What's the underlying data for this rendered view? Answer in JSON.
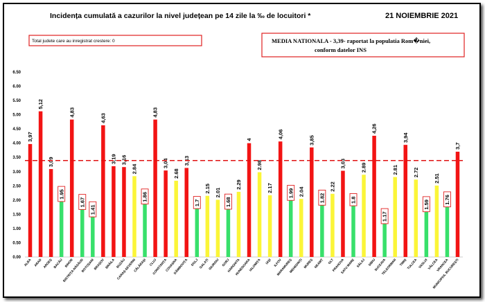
{
  "header": {
    "title": "Incidența cumulată a cazurilor la nivel județean pe 14 zile la ‰ de locuitori *",
    "date": "21 NOIEMBRIE 2021"
  },
  "info_box": {
    "text": "Total judete care au inregistrat crestere: 0"
  },
  "national_box": {
    "line1": "MEDIA NATIONALA - 3,39-  raportat la populatia Rom�niei,",
    "line2": "conform datelor INS"
  },
  "colors": {
    "red": "#f21414",
    "green": "#38e06b",
    "yellow": "#fbf538",
    "reference": "#e01010",
    "box": "#e02020"
  },
  "chart_data": {
    "type": "bar",
    "ylim": [
      0,
      6.5
    ],
    "yticks": [
      "0.00",
      "0.50",
      "1.00",
      "1.50",
      "2.00",
      "2.50",
      "3.00",
      "3.50",
      "4.00",
      "4.50",
      "5.00",
      "5.50",
      "6.00",
      "6.50"
    ],
    "reference_line": 3.39,
    "categories": [
      "ALBA",
      "ARAD",
      "ARGEȘ",
      "BACĂU",
      "BIHOR",
      "BISTRIȚA-NĂSĂUD",
      "BOTOȘANI",
      "BRAȘOV",
      "BRĂILA",
      "BUZĂU",
      "CARAȘ-SEVERIN",
      "CĂLĂRAȘI",
      "CLUJ",
      "CONSTANȚA",
      "COVASNA",
      "DÂMBOVIȚA",
      "DOLJ",
      "GALAȚI",
      "GIURGIU",
      "GORJ",
      "HARGHITA",
      "HUNEDOARA",
      "IALOMIȚA",
      "IAȘI",
      "ILFOV",
      "MARAMUREȘ",
      "MEHEDINȚI",
      "MUREȘ",
      "NEAMȚ",
      "OLT",
      "PRAHOVA",
      "SATU MARE",
      "SĂLAJ",
      "SIBIU",
      "SUCEAVA",
      "TELEORMAN",
      "TIMIȘ",
      "TULCEA",
      "VASLUI",
      "VÂLCEA",
      "VRANCEA",
      "MUNICIPIUL BUCUREȘTI"
    ],
    "values": [
      3.97,
      5.12,
      3.09,
      1.95,
      4.83,
      1.67,
      1.41,
      4.63,
      3.19,
      3.16,
      2.84,
      1.86,
      4.83,
      3.04,
      2.68,
      3.13,
      1.7,
      2.15,
      2.01,
      1.68,
      2.29,
      4,
      2.98,
      2.17,
      4.06,
      1.99,
      2.04,
      3.85,
      1.82,
      2.22,
      3.03,
      1.8,
      2.89,
      4.26,
      1.17,
      2.81,
      3.94,
      2.72,
      1.59,
      2.51,
      1.76,
      3.7
    ],
    "labels": [
      "3,97",
      "5,12",
      "3,09",
      "1.95",
      "4,83",
      "1.67",
      "1.41",
      "4,63",
      "3,19",
      "3,16",
      "2.84",
      "1.86",
      "4,83",
      "3,04",
      "2.68",
      "3,13",
      "1.7",
      "2.15",
      "2.01",
      "1.68",
      "2.29",
      "4",
      "2.98",
      "2.17",
      "4,06",
      "1.99",
      "2.04",
      "3,85",
      "1.82",
      "2.22",
      "3,03",
      "1.8",
      "2.89",
      "4,26",
      "1.17",
      "2.81",
      "3,94",
      "2.72",
      "1.59",
      "2.51",
      "1.76",
      "3,7"
    ],
    "colors": [
      "red",
      "red",
      "red",
      "green",
      "red",
      "green",
      "green",
      "red",
      "red",
      "red",
      "yellow",
      "green",
      "red",
      "red",
      "yellow",
      "red",
      "green",
      "yellow",
      "yellow",
      "green",
      "yellow",
      "red",
      "yellow",
      "yellow",
      "red",
      "green",
      "yellow",
      "red",
      "green",
      "yellow",
      "red",
      "green",
      "yellow",
      "red",
      "green",
      "yellow",
      "red",
      "yellow",
      "green",
      "yellow",
      "green",
      "red"
    ],
    "boxed": [
      false,
      false,
      false,
      true,
      false,
      true,
      true,
      false,
      false,
      false,
      false,
      true,
      false,
      false,
      false,
      false,
      true,
      false,
      false,
      true,
      false,
      false,
      false,
      false,
      false,
      true,
      false,
      false,
      true,
      false,
      false,
      true,
      false,
      false,
      true,
      false,
      false,
      false,
      true,
      false,
      true,
      false
    ]
  }
}
